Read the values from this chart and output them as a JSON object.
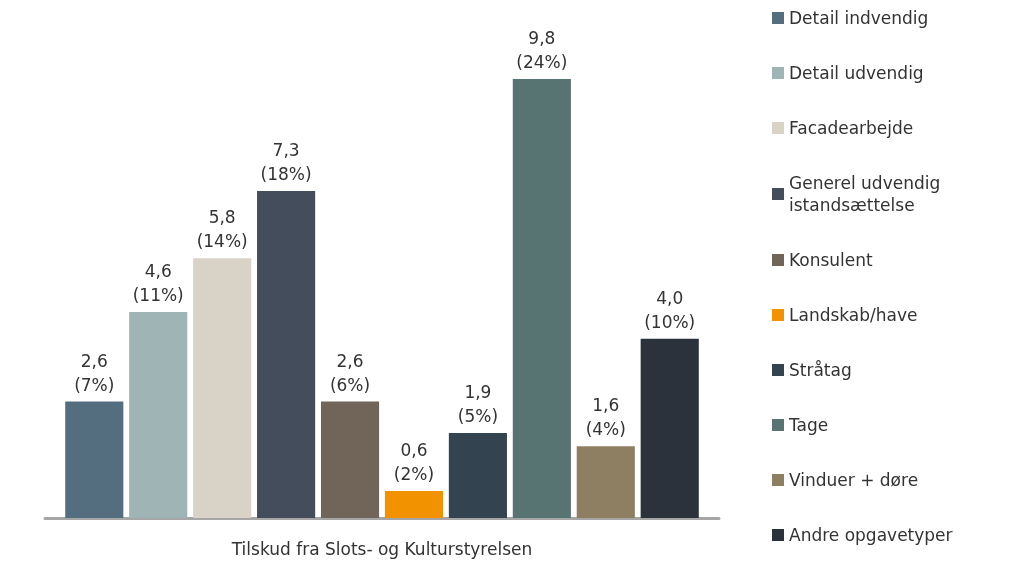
{
  "chart_data": {
    "type": "bar",
    "xlabel": "Tilskud fra Slots- og Kulturstyrelsen",
    "categories": [
      null
    ],
    "legend": "right",
    "grid": false,
    "series": [
      {
        "name": "Detail indvendig",
        "color": "#546e80",
        "values": [
          2.6
        ],
        "value_labels": [
          "2,6\n(7%)"
        ]
      },
      {
        "name": "Detail udvendig",
        "color": "#9fb4b5",
        "values": [
          4.6
        ],
        "value_labels": [
          "4,6\n(11%)"
        ]
      },
      {
        "name": "Facadearbejde",
        "color": "#d9d3c7",
        "values": [
          5.8
        ],
        "value_labels": [
          "5,8\n(14%)"
        ]
      },
      {
        "name": "Generel udvendig istandsættelse",
        "color": "#434d5b",
        "values": [
          7.3
        ],
        "value_labels": [
          "7,3\n(18%)"
        ]
      },
      {
        "name": "Konsulent",
        "color": "#716559",
        "values": [
          2.6
        ],
        "value_labels": [
          "2,6\n(6%)"
        ]
      },
      {
        "name": "Landskab/have",
        "color": "#f39200",
        "values": [
          0.6
        ],
        "value_labels": [
          "0,6\n(2%)"
        ]
      },
      {
        "name": "Stråtag",
        "color": "#33434f",
        "values": [
          1.9
        ],
        "value_labels": [
          "1,9\n(5%)"
        ]
      },
      {
        "name": "Tage",
        "color": "#587472",
        "values": [
          9.8
        ],
        "value_labels": [
          "9,8\n(24%)"
        ]
      },
      {
        "name": "Vinduer + døre",
        "color": "#8e7f62",
        "values": [
          1.6
        ],
        "value_labels": [
          "1,6\n(4%)"
        ]
      },
      {
        "name": "Andre opgavetyper",
        "color": "#2b323c",
        "values": [
          4.0
        ],
        "value_labels": [
          "4,0\n(10%)"
        ]
      }
    ]
  }
}
